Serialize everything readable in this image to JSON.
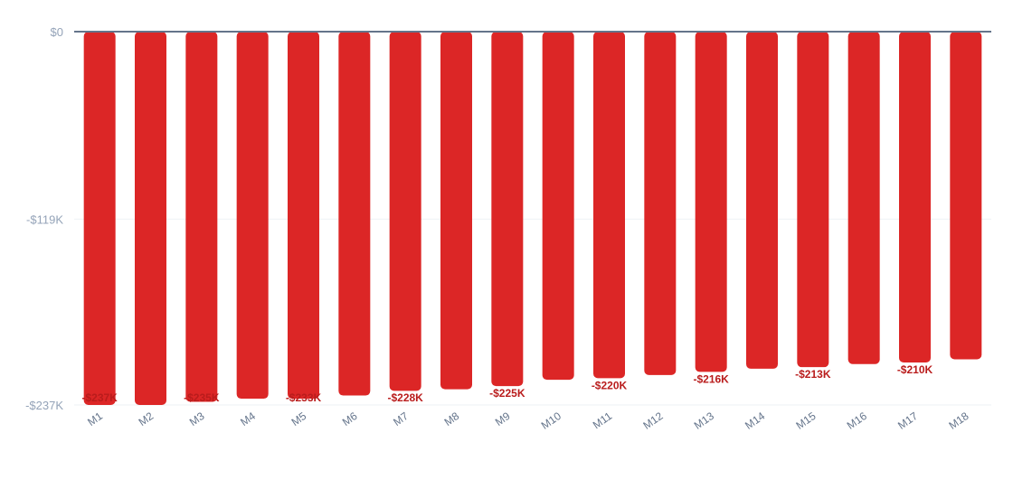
{
  "chart_data": {
    "type": "bar",
    "title": "",
    "xlabel": "",
    "ylabel": "",
    "categories": [
      "M1",
      "M2",
      "M3",
      "M4",
      "M5",
      "M6",
      "M7",
      "M8",
      "M9",
      "M10",
      "M11",
      "M12",
      "M13",
      "M14",
      "M15",
      "M16",
      "M17",
      "M18"
    ],
    "values": [
      -237,
      -237,
      -235,
      -233,
      -233,
      -231,
      -228,
      -227,
      -225,
      -221,
      -220,
      -218,
      -216,
      -214,
      -213,
      -211,
      -210,
      -208
    ],
    "value_unit": "$K",
    "data_labels": [
      "-$237K",
      "",
      "-$235K",
      "",
      "-$233K",
      "",
      "-$228K",
      "",
      "-$225K",
      "",
      "-$220K",
      "",
      "-$216K",
      "",
      "-$213K",
      "",
      "-$210K",
      ""
    ],
    "ylim": [
      -237,
      0
    ],
    "yticks": [
      0,
      -119,
      -237
    ],
    "ytick_labels": [
      "$0",
      "-$119K",
      "-$237K"
    ],
    "grid": true,
    "bar_color": "#dc2626",
    "label_color": "#b91c1c",
    "baseline_color": "#64748b"
  }
}
